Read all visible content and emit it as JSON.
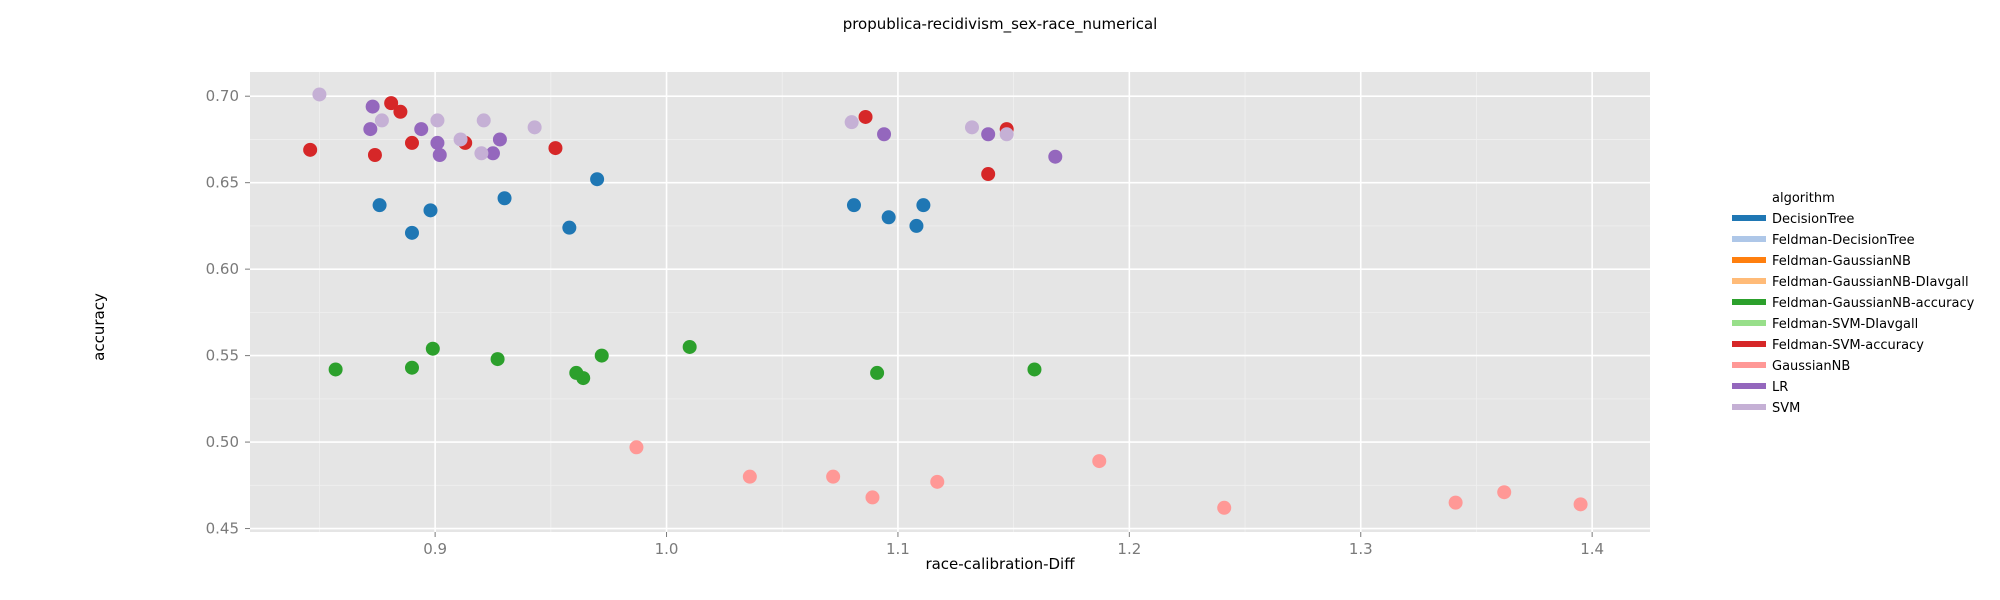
{
  "chart_data": {
    "type": "scatter",
    "title": "propublica-recidivism_sex-race_numerical",
    "xlabel": "race-calibration-Diff",
    "ylabel": "accuracy",
    "xlim": [
      0.82,
      1.425
    ],
    "ylim": [
      0.448,
      0.714
    ],
    "x_ticks": [
      0.9,
      1.0,
      1.1,
      1.2,
      1.3,
      1.4
    ],
    "x_tick_labels": [
      "0.9",
      "1.0",
      "1.1",
      "1.2",
      "1.3",
      "1.4"
    ],
    "y_ticks": [
      0.45,
      0.5,
      0.55,
      0.6,
      0.65,
      0.7
    ],
    "y_tick_labels": [
      "0.45",
      "0.50",
      "0.55",
      "0.60",
      "0.65",
      "0.70"
    ],
    "grid": true,
    "legend_title": "algorithm",
    "legend_position": "right",
    "series": [
      {
        "name": "DecisionTree",
        "color": "#1f77b4",
        "points": [
          [
            0.876,
            0.637
          ],
          [
            0.89,
            0.621
          ],
          [
            0.898,
            0.634
          ],
          [
            0.93,
            0.641
          ],
          [
            0.958,
            0.624
          ],
          [
            0.97,
            0.652
          ],
          [
            1.081,
            0.637
          ],
          [
            1.096,
            0.63
          ],
          [
            1.108,
            0.625
          ],
          [
            1.111,
            0.637
          ]
        ]
      },
      {
        "name": "Feldman-DecisionTree",
        "color": "#aec7e8",
        "points": []
      },
      {
        "name": "Feldman-GaussianNB",
        "color": "#ff7f0e",
        "points": []
      },
      {
        "name": "Feldman-GaussianNB-DIavgall",
        "color": "#ffbb78",
        "points": []
      },
      {
        "name": "Feldman-GaussianNB-accuracy",
        "color": "#2ca02c",
        "points": [
          [
            0.857,
            0.542
          ],
          [
            0.89,
            0.543
          ],
          [
            0.899,
            0.554
          ],
          [
            0.927,
            0.548
          ],
          [
            0.961,
            0.54
          ],
          [
            0.964,
            0.537
          ],
          [
            0.972,
            0.55
          ],
          [
            1.01,
            0.555
          ],
          [
            1.091,
            0.54
          ],
          [
            1.159,
            0.542
          ]
        ]
      },
      {
        "name": "Feldman-SVM-DIavgall",
        "color": "#98df8a",
        "points": []
      },
      {
        "name": "Feldman-SVM-accuracy",
        "color": "#d62728",
        "points": [
          [
            0.846,
            0.669
          ],
          [
            0.874,
            0.666
          ],
          [
            0.881,
            0.696
          ],
          [
            0.885,
            0.691
          ],
          [
            0.89,
            0.673
          ],
          [
            0.913,
            0.673
          ],
          [
            0.952,
            0.67
          ],
          [
            1.086,
            0.688
          ],
          [
            1.139,
            0.655
          ],
          [
            1.147,
            0.681
          ]
        ]
      },
      {
        "name": "GaussianNB",
        "color": "#ff9896",
        "points": [
          [
            0.987,
            0.497
          ],
          [
            1.036,
            0.48
          ],
          [
            1.072,
            0.48
          ],
          [
            1.089,
            0.468
          ],
          [
            1.117,
            0.477
          ],
          [
            1.187,
            0.489
          ],
          [
            1.241,
            0.462
          ],
          [
            1.341,
            0.465
          ],
          [
            1.362,
            0.471
          ],
          [
            1.395,
            0.464
          ]
        ]
      },
      {
        "name": "LR",
        "color": "#9467bd",
        "points": [
          [
            0.872,
            0.681
          ],
          [
            0.873,
            0.694
          ],
          [
            0.894,
            0.681
          ],
          [
            0.901,
            0.673
          ],
          [
            0.902,
            0.666
          ],
          [
            0.925,
            0.667
          ],
          [
            0.928,
            0.675
          ],
          [
            1.094,
            0.678
          ],
          [
            1.139,
            0.678
          ],
          [
            1.168,
            0.665
          ]
        ]
      },
      {
        "name": "SVM",
        "color": "#c5b0d5",
        "points": [
          [
            0.85,
            0.701
          ],
          [
            0.877,
            0.686
          ],
          [
            0.901,
            0.686
          ],
          [
            0.911,
            0.675
          ],
          [
            0.92,
            0.667
          ],
          [
            0.921,
            0.686
          ],
          [
            0.943,
            0.682
          ],
          [
            1.08,
            0.685
          ],
          [
            1.132,
            0.682
          ],
          [
            1.147,
            0.678
          ]
        ]
      }
    ]
  }
}
